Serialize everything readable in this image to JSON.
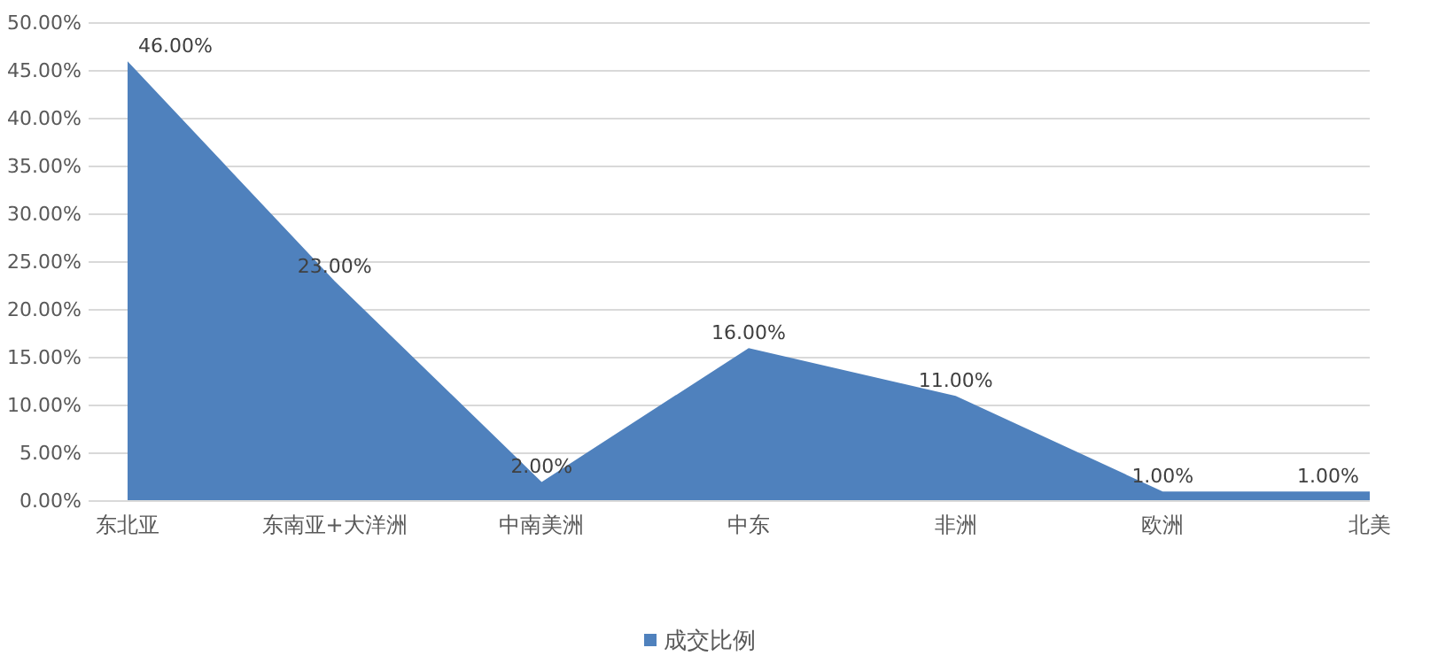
{
  "chart_data": {
    "type": "area",
    "categories": [
      "东北亚",
      "东南亚+大洋洲",
      "中南美洲",
      "中东",
      "非洲",
      "欧洲",
      "北美"
    ],
    "series": [
      {
        "name": "成交比例",
        "color": "#4f81bd",
        "values": [
          46,
          23,
          2,
          16,
          11,
          1,
          1
        ],
        "value_labels": [
          "46.00%",
          "23.00%",
          "2.00%",
          "16.00%",
          "11.00%",
          "1.00%",
          "1.00%"
        ]
      }
    ],
    "ylim": [
      0,
      50
    ],
    "yticks": [
      {
        "value": 0,
        "label": "0.00%"
      },
      {
        "value": 5,
        "label": "5.00%"
      },
      {
        "value": 10,
        "label": "10.00%"
      },
      {
        "value": 15,
        "label": "15.00%"
      },
      {
        "value": 20,
        "label": "20.00%"
      },
      {
        "value": 25,
        "label": "25.00%"
      },
      {
        "value": 30,
        "label": "30.00%"
      },
      {
        "value": 35,
        "label": "35.00%"
      },
      {
        "value": 40,
        "label": "40.00%"
      },
      {
        "value": 45,
        "label": "45.00%"
      },
      {
        "value": 50,
        "label": "50.00%"
      }
    ],
    "grid": "y",
    "legend": "bottom"
  }
}
